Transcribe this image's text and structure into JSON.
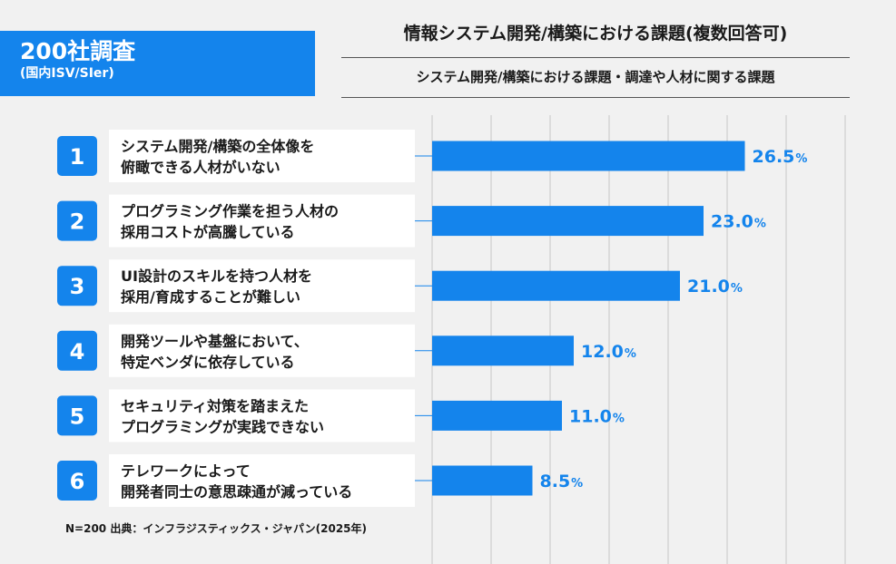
{
  "badge": {
    "main": "200社調査",
    "sub": "(国内ISV/SIer)"
  },
  "title": "情報システム開発/構築における課題(複数回答可)",
  "subtitle": "システム開発/構築における課題・調達や人材に関する課題",
  "source": "N=200 出典：インフラジスティックス・ジャパン(2025年)",
  "colors": {
    "accent": "#1484ec",
    "background": "#f1f1f1"
  },
  "chart_data": {
    "type": "bar",
    "orientation": "horizontal",
    "unit": "%",
    "grid": true,
    "xlim": [
      0,
      35
    ],
    "items": [
      {
        "rank": "1",
        "lines": [
          "システム開発/構築の全体像を",
          "俯瞰できる人材がいない"
        ],
        "value": 26.5,
        "label": "26.5"
      },
      {
        "rank": "2",
        "lines": [
          "プログラミング作業を担う人材の",
          "採用コストが高騰している"
        ],
        "value": 23.0,
        "label": "23.0"
      },
      {
        "rank": "3",
        "lines": [
          "UI設計のスキルを持つ人材を",
          "採用/育成することが難しい"
        ],
        "value": 21.0,
        "label": "21.0"
      },
      {
        "rank": "4",
        "lines": [
          "開発ツールや基盤において、",
          "特定ベンダに依存している"
        ],
        "value": 12.0,
        "label": "12.0"
      },
      {
        "rank": "5",
        "lines": [
          "セキュリティ対策を踏まえた",
          "プログラミングが実践できない"
        ],
        "value": 11.0,
        "label": "11.0"
      },
      {
        "rank": "6",
        "lines": [
          "テレワークによって",
          "開発者同士の意思疎通が減っている"
        ],
        "value": 8.5,
        "label": "8.5"
      }
    ]
  }
}
